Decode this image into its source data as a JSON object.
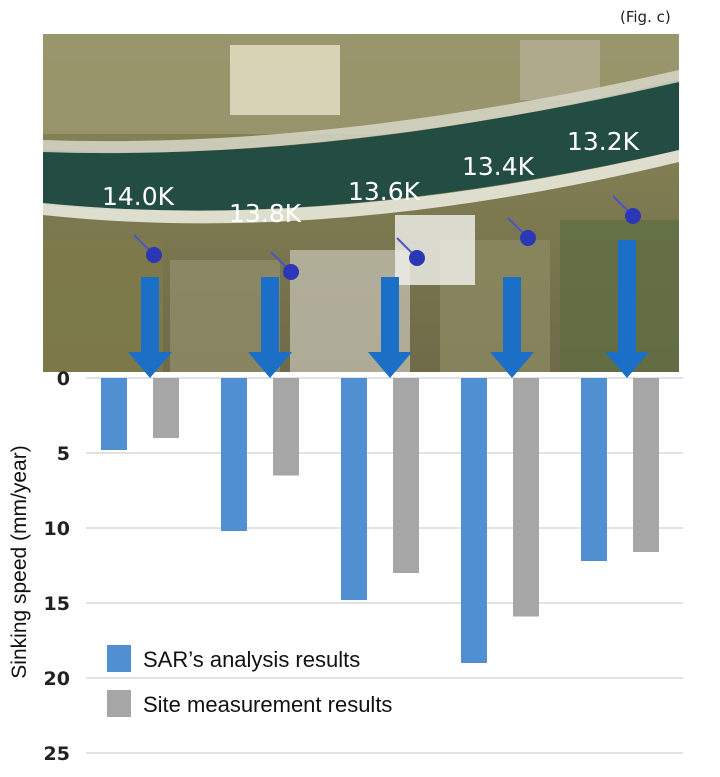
{
  "figure_label": "(Fig. c)",
  "chart_data": {
    "type": "bar",
    "orientation": "vertical-down",
    "categories": [
      "14.0K",
      "13.8K",
      "13.6K",
      "13.4K",
      "13.2K"
    ],
    "series": [
      {
        "name": "SAR’s analysis results",
        "color": "#4f8fd2",
        "values": [
          4.8,
          10.2,
          14.8,
          19.0,
          12.2
        ]
      },
      {
        "name": "Site measurement results",
        "color": "#a6a6a6",
        "values": [
          4.0,
          6.5,
          13.0,
          15.9,
          11.6
        ]
      }
    ],
    "ylabel": "Sinking speed (mm/year)",
    "ylim": [
      0,
      25
    ],
    "yticks": [
      "0",
      "5",
      "10",
      "15",
      "20",
      "25"
    ],
    "grid": true,
    "legend": "bottom-left"
  },
  "colors": {
    "arrow": "#1b6fc7",
    "marker": "#2b37b5",
    "grid": "#d0d0d0"
  }
}
